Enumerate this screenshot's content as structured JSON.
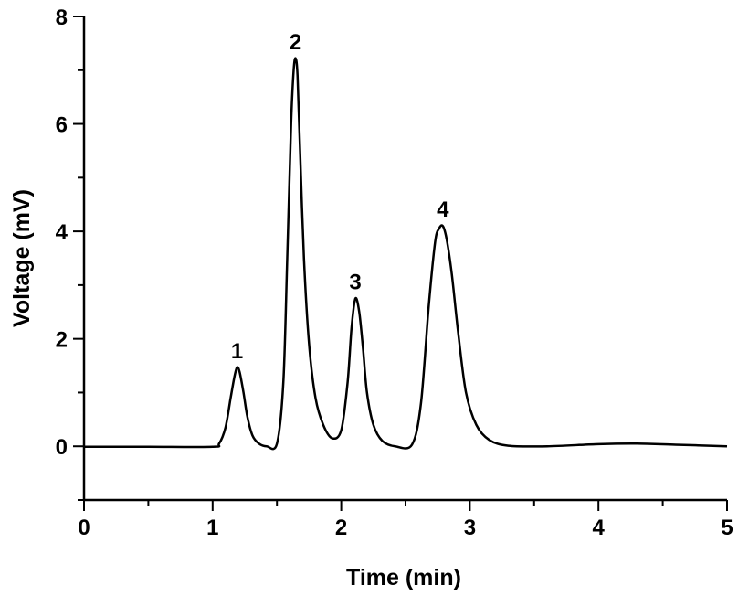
{
  "chart_data": {
    "type": "line",
    "title": "",
    "xlabel": "Time (min)",
    "ylabel": "Voltage (mV)",
    "xlim": [
      0,
      5
    ],
    "ylim": [
      -1,
      8
    ],
    "x_ticks": [
      "0",
      "1",
      "2",
      "3",
      "4",
      "5"
    ],
    "y_ticks": [
      "0",
      "2",
      "4",
      "6",
      "8"
    ],
    "x_minor_step": 0.5,
    "y_minor_step": 1,
    "grid": false,
    "legend": "none",
    "line_color": "#000000",
    "series": [
      {
        "x": [
          0.0,
          0.5,
          1.0,
          1.05,
          1.1,
          1.14,
          1.17,
          1.19,
          1.21,
          1.24,
          1.27,
          1.31,
          1.36,
          1.42,
          1.5,
          1.55,
          1.58,
          1.61,
          1.63,
          1.645,
          1.66,
          1.68,
          1.71,
          1.75,
          1.8,
          1.86,
          1.93,
          2.0,
          2.05,
          2.08,
          2.11,
          2.14,
          2.17,
          2.2,
          2.25,
          2.32,
          2.42,
          2.55,
          2.62,
          2.68,
          2.73,
          2.76,
          2.79,
          2.82,
          2.86,
          2.91,
          2.97,
          3.05,
          3.15,
          3.3,
          3.6,
          4.0,
          4.3,
          4.6,
          5.0
        ],
        "y": [
          -0.01,
          -0.01,
          -0.01,
          0.05,
          0.35,
          0.9,
          1.3,
          1.47,
          1.38,
          1.0,
          0.55,
          0.2,
          0.05,
          0.0,
          0.05,
          1.2,
          3.5,
          6.0,
          7.0,
          7.22,
          6.9,
          5.5,
          3.5,
          1.9,
          0.9,
          0.4,
          0.15,
          0.3,
          1.2,
          2.2,
          2.75,
          2.5,
          1.8,
          1.0,
          0.4,
          0.1,
          0.0,
          0.03,
          0.8,
          2.6,
          3.8,
          4.05,
          4.1,
          3.85,
          3.2,
          2.1,
          1.0,
          0.4,
          0.12,
          0.01,
          0.0,
          0.04,
          0.05,
          0.03,
          0.0
        ]
      }
    ],
    "annotations": [
      {
        "text": "1",
        "x": 1.19,
        "y": 1.47
      },
      {
        "text": "2",
        "x": 1.645,
        "y": 7.22
      },
      {
        "text": "3",
        "x": 2.11,
        "y": 2.75
      },
      {
        "text": "4",
        "x": 2.79,
        "y": 4.1
      }
    ]
  }
}
